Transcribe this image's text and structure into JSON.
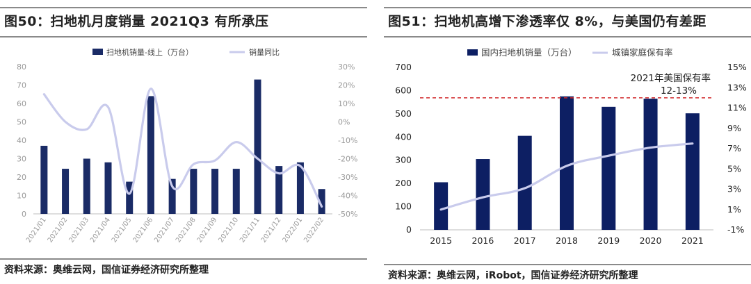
{
  "left": {
    "title": "图50：扫地机月度销量 2021Q3 有所承压",
    "source": "资料来源：奥维云网，国信证券经济研究所整理",
    "colors": {
      "bar": "#1a2b66",
      "line": "#c9cbec",
      "axis_text": "#9a9a9a"
    }
  },
  "right": {
    "title": "图51：扫地机高增下渗透率仅 8%，与美国仍有差距",
    "source": "资料来源：奥维云网，iRobot，国信证券经济研究所整理",
    "colors": {
      "bar": "#0d1f63",
      "line": "#c9cbec",
      "ref": "#d0282a",
      "axis_text": "#222222"
    }
  },
  "chart_data": [
    {
      "type": "bar",
      "title": "扫地机月度销量 2021Q3 有所承压",
      "categories": [
        "2021/01",
        "2021/02",
        "2021/03",
        "2021/04",
        "2021/05",
        "2021/06",
        "2021/07",
        "2021/08",
        "2021/09",
        "2021/10",
        "2021/11",
        "2021/12",
        "2022/01",
        "2022/02"
      ],
      "series": [
        {
          "name": "扫地机销量-线上（万台）",
          "type": "bar",
          "axis": "left",
          "values": [
            37,
            24.5,
            30,
            28,
            17.5,
            64,
            19,
            24.5,
            24.5,
            24.5,
            73,
            26,
            28,
            13.5
          ]
        },
        {
          "name": "销量同比",
          "type": "line",
          "axis": "right",
          "smooth": true,
          "values": [
            15,
            0,
            -4,
            8,
            -39,
            18,
            -35,
            -23,
            -21,
            -11,
            -20,
            -28,
            -24,
            -46
          ]
        }
      ],
      "ylim": [
        0,
        80
      ],
      "yticks": [
        0,
        10,
        20,
        30,
        40,
        50,
        60,
        70,
        80
      ],
      "y2lim": [
        -50,
        30
      ],
      "y2ticks": [
        30,
        20,
        10,
        0,
        -10,
        -20,
        -30,
        -40,
        -50
      ],
      "y2ticklabels": [
        "30%",
        "20%",
        "10%",
        "0%",
        "-10%",
        "-20%",
        "-30%",
        "-40%",
        "-50%"
      ],
      "legend": "top-center"
    },
    {
      "type": "bar",
      "title": "扫地机高增下渗透率仅 8%，与美国仍有差距",
      "categories": [
        "2015",
        "2016",
        "2017",
        "2018",
        "2019",
        "2020",
        "2021"
      ],
      "series": [
        {
          "name": "国内扫地机销量（万台）",
          "type": "bar",
          "axis": "left",
          "values": [
            205,
            305,
            405,
            575,
            530,
            565,
            502
          ]
        },
        {
          "name": "城镇家庭保有率",
          "type": "line",
          "axis": "right",
          "smooth": true,
          "values": [
            1.0,
            2.2,
            3.1,
            5.3,
            6.3,
            7.1,
            7.5
          ]
        }
      ],
      "ylim": [
        0,
        700
      ],
      "yticks": [
        0,
        100,
        200,
        300,
        400,
        500,
        600,
        700
      ],
      "y2lim": [
        -1,
        15
      ],
      "y2ticks": [
        15,
        13,
        11,
        9,
        7,
        5,
        3,
        1,
        -1
      ],
      "y2ticklabels": [
        "15%",
        "13%",
        "11%",
        "9%",
        "7%",
        "5%",
        "3%",
        "1%",
        "-1%"
      ],
      "reference_line": {
        "value": 12,
        "axis": "right",
        "label1": "2021年美国保有率",
        "label2": "12-13%"
      },
      "legend": "top-center"
    }
  ]
}
